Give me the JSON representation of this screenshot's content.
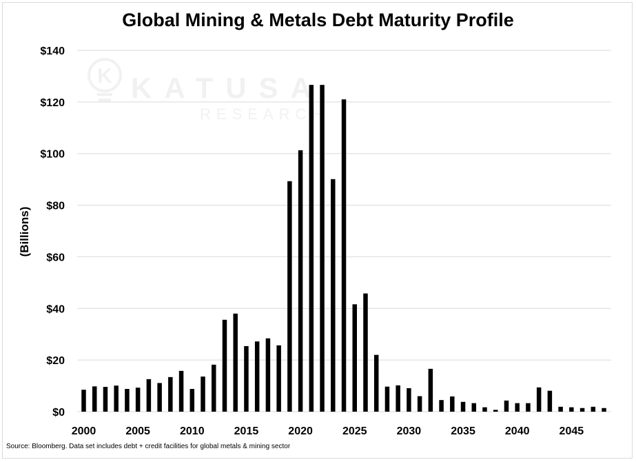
{
  "chart_data": {
    "type": "bar",
    "title": "Global Mining & Metals Debt Maturity Profile",
    "ylabel": "(Billions)",
    "xlabel": "",
    "source": "Source: Bloomberg. Data set includes debt + credit facilities for global metals & mining sector",
    "watermark": {
      "brand": "KATUSA",
      "sub": "RESEARCH"
    },
    "ylim": [
      0,
      140
    ],
    "y_ticks": [
      "$0",
      "$20",
      "$40",
      "$60",
      "$80",
      "$100",
      "$120",
      "$140"
    ],
    "x_ticks": [
      "2000",
      "2005",
      "2010",
      "2015",
      "2020",
      "2025",
      "2030",
      "2035",
      "2040",
      "2045"
    ],
    "grid": "horizontal",
    "bar_color": "#000000",
    "categories": [
      2000,
      2001,
      2002,
      2003,
      2004,
      2005,
      2006,
      2007,
      2008,
      2009,
      2010,
      2011,
      2012,
      2013,
      2014,
      2015,
      2016,
      2017,
      2018,
      2019,
      2020,
      2021,
      2022,
      2023,
      2024,
      2025,
      2026,
      2027,
      2028,
      2029,
      2030,
      2031,
      2032,
      2033,
      2034,
      2035,
      2036,
      2037,
      2038,
      2039,
      2040,
      2041,
      2042,
      2043,
      2044,
      2045,
      2046,
      2047,
      2048
    ],
    "values": [
      8.5,
      9.8,
      9.6,
      10.1,
      8.8,
      9.3,
      12.6,
      11.1,
      13.4,
      15.8,
      8.8,
      13.6,
      18.2,
      35.6,
      38.0,
      25.4,
      27.2,
      28.4,
      25.7,
      89.3,
      101.3,
      126.6,
      126.6,
      90.1,
      121.0,
      41.6,
      45.8,
      22.0,
      9.7,
      10.2,
      9.1,
      6.0,
      16.6,
      4.5,
      5.9,
      3.8,
      3.3,
      1.7,
      0.7,
      4.3,
      3.3,
      3.3,
      9.4,
      8.1,
      1.9,
      1.7,
      1.4,
      1.9,
      1.4
    ]
  }
}
